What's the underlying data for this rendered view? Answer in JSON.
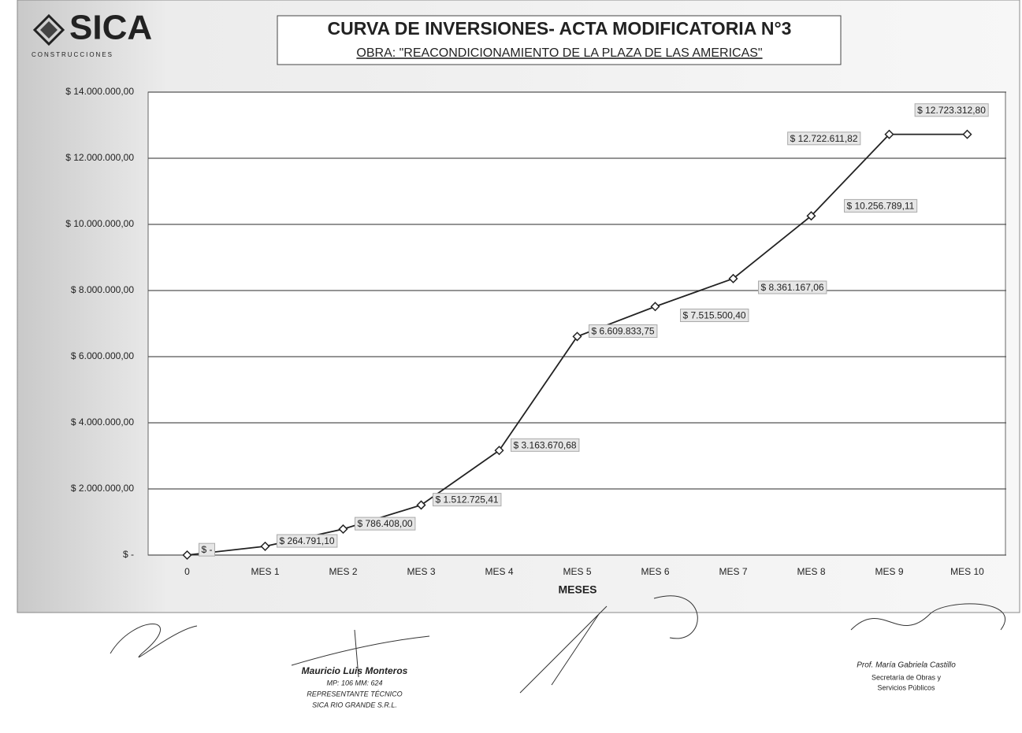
{
  "logo": {
    "name": "SICA",
    "tagline": "CONSTRUCCIONES"
  },
  "chart_data": {
    "type": "line",
    "title": "CURVA DE INVERSIONES- ACTA MODIFICATORIA N°3",
    "subtitle": "OBRA: \"REACONDICIONAMIENTO DE LA PLAZA DE LAS AMERICAS\"",
    "x_label": "MESES",
    "categories": [
      "0",
      "MES 1",
      "MES 2",
      "MES 3",
      "MES 4",
      "MES 5",
      "MES 6",
      "MES 7",
      "MES 8",
      "MES 9",
      "MES 10"
    ],
    "values": [
      0,
      264791.1,
      786408.0,
      1512725.41,
      3163670.68,
      6609833.75,
      7515500.4,
      8361167.06,
      10256789.11,
      12722611.82,
      12723312.8
    ],
    "value_labels": [
      "$ -",
      "$ 264.791,10",
      "$ 786.408,00",
      "$ 1.512.725,41",
      "$ 3.163.670,68",
      "$ 6.609.833,75",
      "$ 7.515.500,40",
      "$ 8.361.167,06",
      "$ 10.256.789,11",
      "$ 12.722.611,82",
      "$ 12.723.312,80"
    ],
    "color": "#222222",
    "ylim": [
      0,
      14000000
    ],
    "yticks": [
      {
        "value": 0,
        "label": "$ -"
      },
      {
        "value": 2000000,
        "label": "$ 2.000.000,00"
      },
      {
        "value": 4000000,
        "label": "$ 4.000.000,00"
      },
      {
        "value": 6000000,
        "label": "$ 6.000.000,00"
      },
      {
        "value": 8000000,
        "label": "$ 8.000.000,00"
      },
      {
        "value": 10000000,
        "label": "$ 10.000.000,00"
      },
      {
        "value": 12000000,
        "label": "$ 12.000.000,00"
      },
      {
        "value": 14000000,
        "label": "$ 14.000.000,00"
      }
    ],
    "grid": true
  },
  "signatures": [
    {
      "name": "Mauricio Luis Monteros",
      "lines": [
        "MP: 106 MM: 624",
        "REPRESENTANTE TÉCNICO",
        "SICA RIO GRANDE S.R.L."
      ]
    },
    {
      "name": "Prof. María Gabriela Castillo",
      "lines": [
        "Secretaría de Obras y",
        "Servicios Públicos"
      ]
    }
  ]
}
